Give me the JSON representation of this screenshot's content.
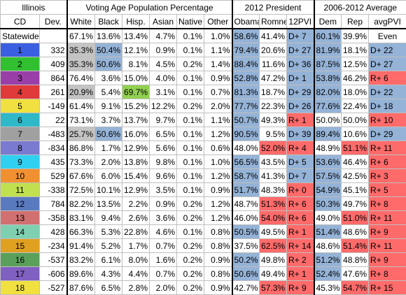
{
  "header": {
    "state": "Illinois",
    "vap_group": "Voting Age Population Percentage",
    "pres_group": "2012 President",
    "avg_group": "2006-2012 Average",
    "cols": [
      "CD",
      "Dev.",
      "White",
      "Black",
      "Hisp.",
      "Asian",
      "Native",
      "Other",
      "Obama",
      "Romney",
      "12PVI",
      "Dem",
      "Rep",
      "avgPVI"
    ]
  },
  "colors": {
    "blue": "#95b3d7",
    "red": "#ff6b6b",
    "gray": "#c4c4c4",
    "green": "#92d050"
  },
  "rows": [
    {
      "cd": "Statewide",
      "cdColor": "",
      "dev": "",
      "white": "67.1%",
      "black": "13.6%",
      "hisp": "13.4%",
      "asian": "4.7%",
      "native": "0.1%",
      "other": "1.0%",
      "obama": "58.6%",
      "romney": "41.4%",
      "pvi": "D+ 7",
      "dem": "60.1%",
      "rep": "39.9%",
      "avgpvi": "Even",
      "hl": {
        "obama": "blue",
        "pvi": "blue",
        "dem": "blue"
      }
    },
    {
      "cd": "1",
      "cdColor": "#3a5fe0",
      "dev": "332",
      "white": "35.3%",
      "black": "50.4%",
      "hisp": "12.1%",
      "asian": "0.9%",
      "native": "0.1%",
      "other": "1.1%",
      "obama": "79.4%",
      "romney": "20.6%",
      "pvi": "D+ 27",
      "dem": "81.9%",
      "rep": "18.1%",
      "avgpvi": "D+ 22",
      "hl": {
        "white": "gray",
        "black": "blue",
        "obama": "blue",
        "pvi": "blue",
        "dem": "blue",
        "avgpvi": "blue"
      }
    },
    {
      "cd": "2",
      "cdColor": "#30c030",
      "dev": "409",
      "white": "35.3%",
      "black": "50.6%",
      "hisp": "8.1%",
      "asian": "4.5%",
      "native": "0.2%",
      "other": "1.4%",
      "obama": "88.4%",
      "romney": "11.6%",
      "pvi": "D+ 36",
      "dem": "87.5%",
      "rep": "12.5%",
      "avgpvi": "D+ 27",
      "hl": {
        "white": "gray",
        "black": "blue",
        "obama": "blue",
        "pvi": "blue",
        "dem": "blue",
        "avgpvi": "blue"
      }
    },
    {
      "cd": "3",
      "cdColor": "#9a3fa8",
      "dev": "864",
      "white": "76.4%",
      "black": "3.6%",
      "hisp": "15.0%",
      "asian": "4.0%",
      "native": "0.1%",
      "other": "0.9%",
      "obama": "52.8%",
      "romney": "47.2%",
      "pvi": "D+ 1",
      "dem": "53.8%",
      "rep": "46.2%",
      "avgpvi": "R+ 6",
      "hl": {
        "obama": "blue",
        "pvi": "blue",
        "dem": "blue",
        "avgpvi": "red"
      }
    },
    {
      "cd": "4",
      "cdColor": "#e03a3a",
      "dev": "261",
      "white": "20.9%",
      "black": "5.4%",
      "hisp": "69.7%",
      "asian": "3.1%",
      "native": "0.1%",
      "other": "0.7%",
      "obama": "81.3%",
      "romney": "18.7%",
      "pvi": "D+ 29",
      "dem": "82.0%",
      "rep": "18.0%",
      "avgpvi": "D+ 22",
      "hl": {
        "white": "gray",
        "hisp": "green",
        "obama": "blue",
        "pvi": "blue",
        "dem": "blue",
        "avgpvi": "blue"
      }
    },
    {
      "cd": "5",
      "cdColor": "#f0e040",
      "dev": "-149",
      "white": "61.4%",
      "black": "9.1%",
      "hisp": "15.2%",
      "asian": "12.2%",
      "native": "0.2%",
      "other": "2.0%",
      "obama": "77.7%",
      "romney": "22.3%",
      "pvi": "D+ 26",
      "dem": "77.6%",
      "rep": "22.4%",
      "avgpvi": "D+ 18",
      "hl": {
        "obama": "blue",
        "pvi": "blue",
        "dem": "blue",
        "avgpvi": "blue"
      }
    },
    {
      "cd": "6",
      "cdColor": "#2fb8c8",
      "dev": "22",
      "white": "73.1%",
      "black": "3.7%",
      "hisp": "13.7%",
      "asian": "9.7%",
      "native": "0.1%",
      "other": "1.1%",
      "obama": "50.7%",
      "romney": "49.3%",
      "pvi": "R+ 1",
      "dem": "50.0%",
      "rep": "50.0%",
      "avgpvi": "R+ 10",
      "hl": {
        "obama": "blue",
        "pvi": "red",
        "avgpvi": "red"
      }
    },
    {
      "cd": "7",
      "cdColor": "#a0a0a0",
      "dev": "-483",
      "white": "25.7%",
      "black": "50.6%",
      "hisp": "16.0%",
      "asian": "6.5%",
      "native": "0.1%",
      "other": "1.2%",
      "obama": "90.5%",
      "romney": "9.5%",
      "pvi": "D+ 39",
      "dem": "89.4%",
      "rep": "10.6%",
      "avgpvi": "D+ 29",
      "hl": {
        "white": "gray",
        "black": "blue",
        "obama": "blue",
        "pvi": "blue",
        "dem": "blue",
        "avgpvi": "blue"
      }
    },
    {
      "cd": "8",
      "cdColor": "#7a7ad0",
      "dev": "-834",
      "white": "86.8%",
      "black": "1.7%",
      "hisp": "12.9%",
      "asian": "5.6%",
      "native": "0.1%",
      "other": "0.6%",
      "obama": "48.0%",
      "romney": "52.0%",
      "pvi": "R+ 4",
      "dem": "48.9%",
      "rep": "51.1%",
      "avgpvi": "R+ 11",
      "hl": {
        "romney": "red",
        "pvi": "red",
        "rep": "red",
        "avgpvi": "red"
      }
    },
    {
      "cd": "9",
      "cdColor": "#30d0f0",
      "dev": "435",
      "white": "73.3%",
      "black": "2.0%",
      "hisp": "13.8%",
      "asian": "9.8%",
      "native": "0.1%",
      "other": "1.0%",
      "obama": "56.5%",
      "romney": "43.5%",
      "pvi": "D+ 5",
      "dem": "53.6%",
      "rep": "46.4%",
      "avgpvi": "R+ 6",
      "hl": {
        "obama": "blue",
        "pvi": "blue",
        "dem": "blue",
        "avgpvi": "red"
      }
    },
    {
      "cd": "10",
      "cdColor": "#f09030",
      "dev": "529",
      "white": "67.6%",
      "black": "6.0%",
      "hisp": "15.4%",
      "asian": "9.6%",
      "native": "0.1%",
      "other": "1.2%",
      "obama": "58.7%",
      "romney": "41.3%",
      "pvi": "D+ 7",
      "dem": "57.5%",
      "rep": "42.5%",
      "avgpvi": "R+ 3",
      "hl": {
        "obama": "blue",
        "pvi": "blue",
        "dem": "blue",
        "avgpvi": "red"
      }
    },
    {
      "cd": "11",
      "cdColor": "#c0e050",
      "dev": "-338",
      "white": "72.5%",
      "black": "10.1%",
      "hisp": "12.9%",
      "asian": "3.5%",
      "native": "0.1%",
      "other": "0.9%",
      "obama": "51.7%",
      "romney": "48.3%",
      "pvi": "R+ 0",
      "dem": "54.9%",
      "rep": "45.1%",
      "avgpvi": "R+ 5",
      "hl": {
        "obama": "blue",
        "pvi": "red",
        "dem": "blue",
        "avgpvi": "red"
      }
    },
    {
      "cd": "12",
      "cdColor": "#5a7ac0",
      "dev": "784",
      "white": "82.2%",
      "black": "13.5%",
      "hisp": "2.2%",
      "asian": "0.9%",
      "native": "0.2%",
      "other": "1.2%",
      "obama": "48.7%",
      "romney": "51.3%",
      "pvi": "R+ 6",
      "dem": "50.3%",
      "rep": "49.7%",
      "avgpvi": "R+ 8",
      "hl": {
        "romney": "red",
        "pvi": "red",
        "dem": "blue",
        "avgpvi": "red"
      }
    },
    {
      "cd": "13",
      "cdColor": "#d07070",
      "dev": "-358",
      "white": "83.1%",
      "black": "9.4%",
      "hisp": "2.6%",
      "asian": "3.6%",
      "native": "0.2%",
      "other": "1.2%",
      "obama": "46.0%",
      "romney": "54.0%",
      "pvi": "R+ 6",
      "dem": "49.0%",
      "rep": "51.0%",
      "avgpvi": "R+ 11",
      "hl": {
        "romney": "red",
        "pvi": "red",
        "rep": "red",
        "avgpvi": "red"
      }
    },
    {
      "cd": "14",
      "cdColor": "#7fd0b0",
      "dev": "428",
      "white": "66.3%",
      "black": "5.3%",
      "hisp": "22.8%",
      "asian": "4.6%",
      "native": "0.1%",
      "other": "0.8%",
      "obama": "50.5%",
      "romney": "49.5%",
      "pvi": "R+ 1",
      "dem": "51.4%",
      "rep": "48.6%",
      "avgpvi": "R+ 9",
      "hl": {
        "obama": "blue",
        "pvi": "red",
        "dem": "blue",
        "avgpvi": "red"
      }
    },
    {
      "cd": "15",
      "cdColor": "#e0a020",
      "dev": "-234",
      "white": "91.4%",
      "black": "5.2%",
      "hisp": "1.7%",
      "asian": "0.7%",
      "native": "0.2%",
      "other": "0.8%",
      "obama": "37.5%",
      "romney": "62.5%",
      "pvi": "R+ 14",
      "dem": "48.6%",
      "rep": "51.4%",
      "avgpvi": "R+ 11",
      "hl": {
        "romney": "red",
        "pvi": "red",
        "rep": "red",
        "avgpvi": "red"
      }
    },
    {
      "cd": "16",
      "cdColor": "#5aa05a",
      "dev": "-537",
      "white": "83.2%",
      "black": "6.1%",
      "hisp": "8.0%",
      "asian": "1.6%",
      "native": "0.2%",
      "other": "0.9%",
      "obama": "50.2%",
      "romney": "49.8%",
      "pvi": "R+ 2",
      "dem": "51.2%",
      "rep": "48.8%",
      "avgpvi": "R+ 9",
      "hl": {
        "obama": "blue",
        "pvi": "red",
        "dem": "blue",
        "avgpvi": "red"
      }
    },
    {
      "cd": "17",
      "cdColor": "#8060c0",
      "dev": "-606",
      "white": "89.6%",
      "black": "4.3%",
      "hisp": "4.4%",
      "asian": "0.7%",
      "native": "0.2%",
      "other": "0.8%",
      "obama": "50.6%",
      "romney": "49.4%",
      "pvi": "R+ 1",
      "dem": "52.4%",
      "rep": "47.6%",
      "avgpvi": "R+ 8",
      "hl": {
        "obama": "blue",
        "pvi": "red",
        "dem": "blue",
        "avgpvi": "red"
      }
    },
    {
      "cd": "18",
      "cdColor": "#f0e040",
      "dev": "-527",
      "white": "87.6%",
      "black": "6.5%",
      "hisp": "2.8%",
      "asian": "2.0%",
      "native": "0.2%",
      "other": "0.9%",
      "obama": "42.7%",
      "romney": "57.3%",
      "pvi": "R+ 9",
      "dem": "45.3%",
      "rep": "54.7%",
      "avgpvi": "R+ 15",
      "hl": {
        "romney": "red",
        "pvi": "red",
        "rep": "red",
        "avgpvi": "red"
      }
    }
  ]
}
